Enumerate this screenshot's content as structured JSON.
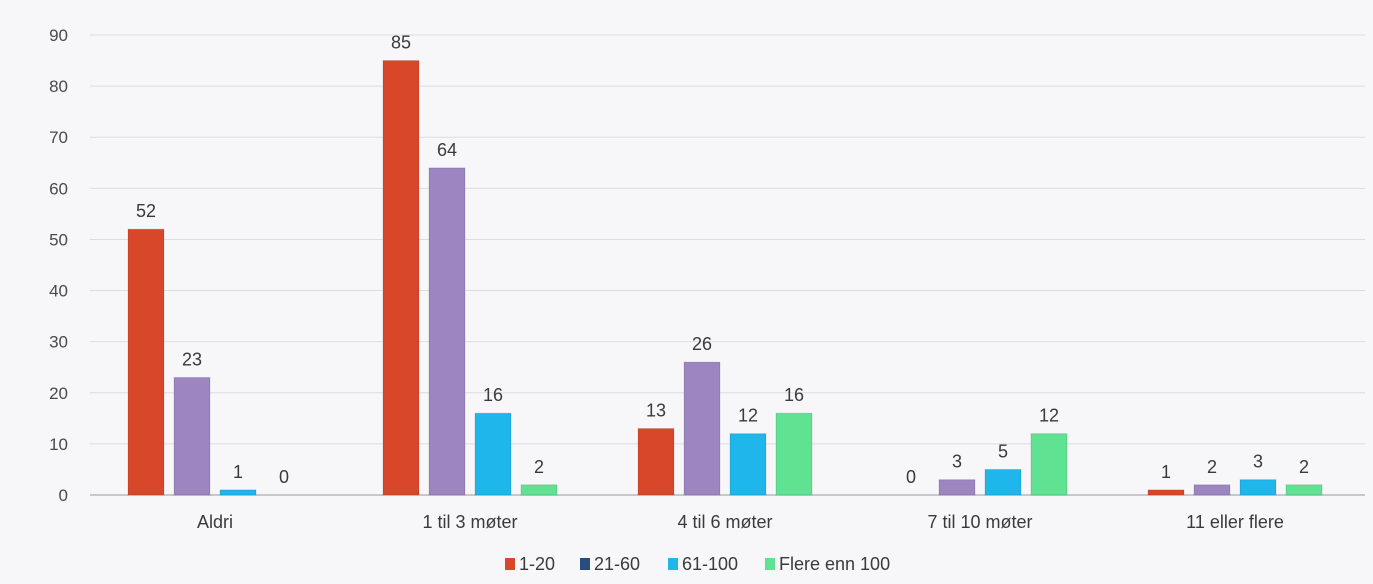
{
  "chart_data": {
    "type": "bar",
    "categories": [
      "Aldri",
      "1 til 3 møter",
      "4 til 6 møter",
      "7 til 10 møter",
      "11 eller flere"
    ],
    "series": [
      {
        "name": "1-20",
        "color": "#d9472b",
        "values": [
          52,
          85,
          13,
          0,
          1
        ]
      },
      {
        "name": "21-60",
        "color": "#9c85c0",
        "values": [
          23,
          64,
          26,
          3,
          2
        ]
      },
      {
        "name": "61-100",
        "color": "#1fb6ec",
        "values": [
          1,
          16,
          12,
          5,
          3
        ]
      },
      {
        "name": "Flere enn 100",
        "color": "#5fe392",
        "values": [
          0,
          2,
          16,
          12,
          2
        ]
      }
    ],
    "ylim": [
      0,
      90
    ],
    "yticks": [
      0,
      10,
      20,
      30,
      40,
      50,
      60,
      70,
      80,
      90
    ],
    "grid": true,
    "legend_position": "bottom",
    "legend_colors": [
      "#d9472b",
      "#2a4d80",
      "#1fb6ec",
      "#5fe392"
    ]
  }
}
